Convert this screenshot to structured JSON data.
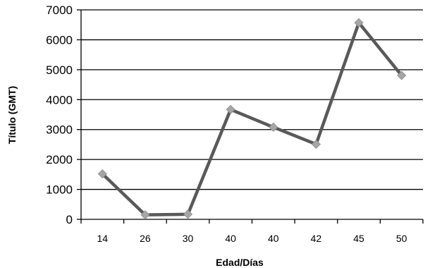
{
  "chart_data": {
    "type": "line",
    "title": "",
    "xlabel": "Edad/Días",
    "ylabel": "Título (GMT)",
    "categories": [
      "14",
      "26",
      "30",
      "40",
      "40",
      "42",
      "45",
      "50"
    ],
    "series": [
      {
        "values": [
          1520,
          150,
          170,
          3670,
          3080,
          2510,
          6570,
          4810
        ]
      }
    ],
    "ylim": [
      0,
      7000
    ],
    "yticks": [
      0,
      1000,
      2000,
      3000,
      4000,
      5000,
      6000,
      7000
    ],
    "grid": "horizontal",
    "legend": "none",
    "colors": {
      "line": "#595959",
      "marker": "#a6a6a6",
      "grid": "#000000",
      "axis": "#000000"
    }
  }
}
